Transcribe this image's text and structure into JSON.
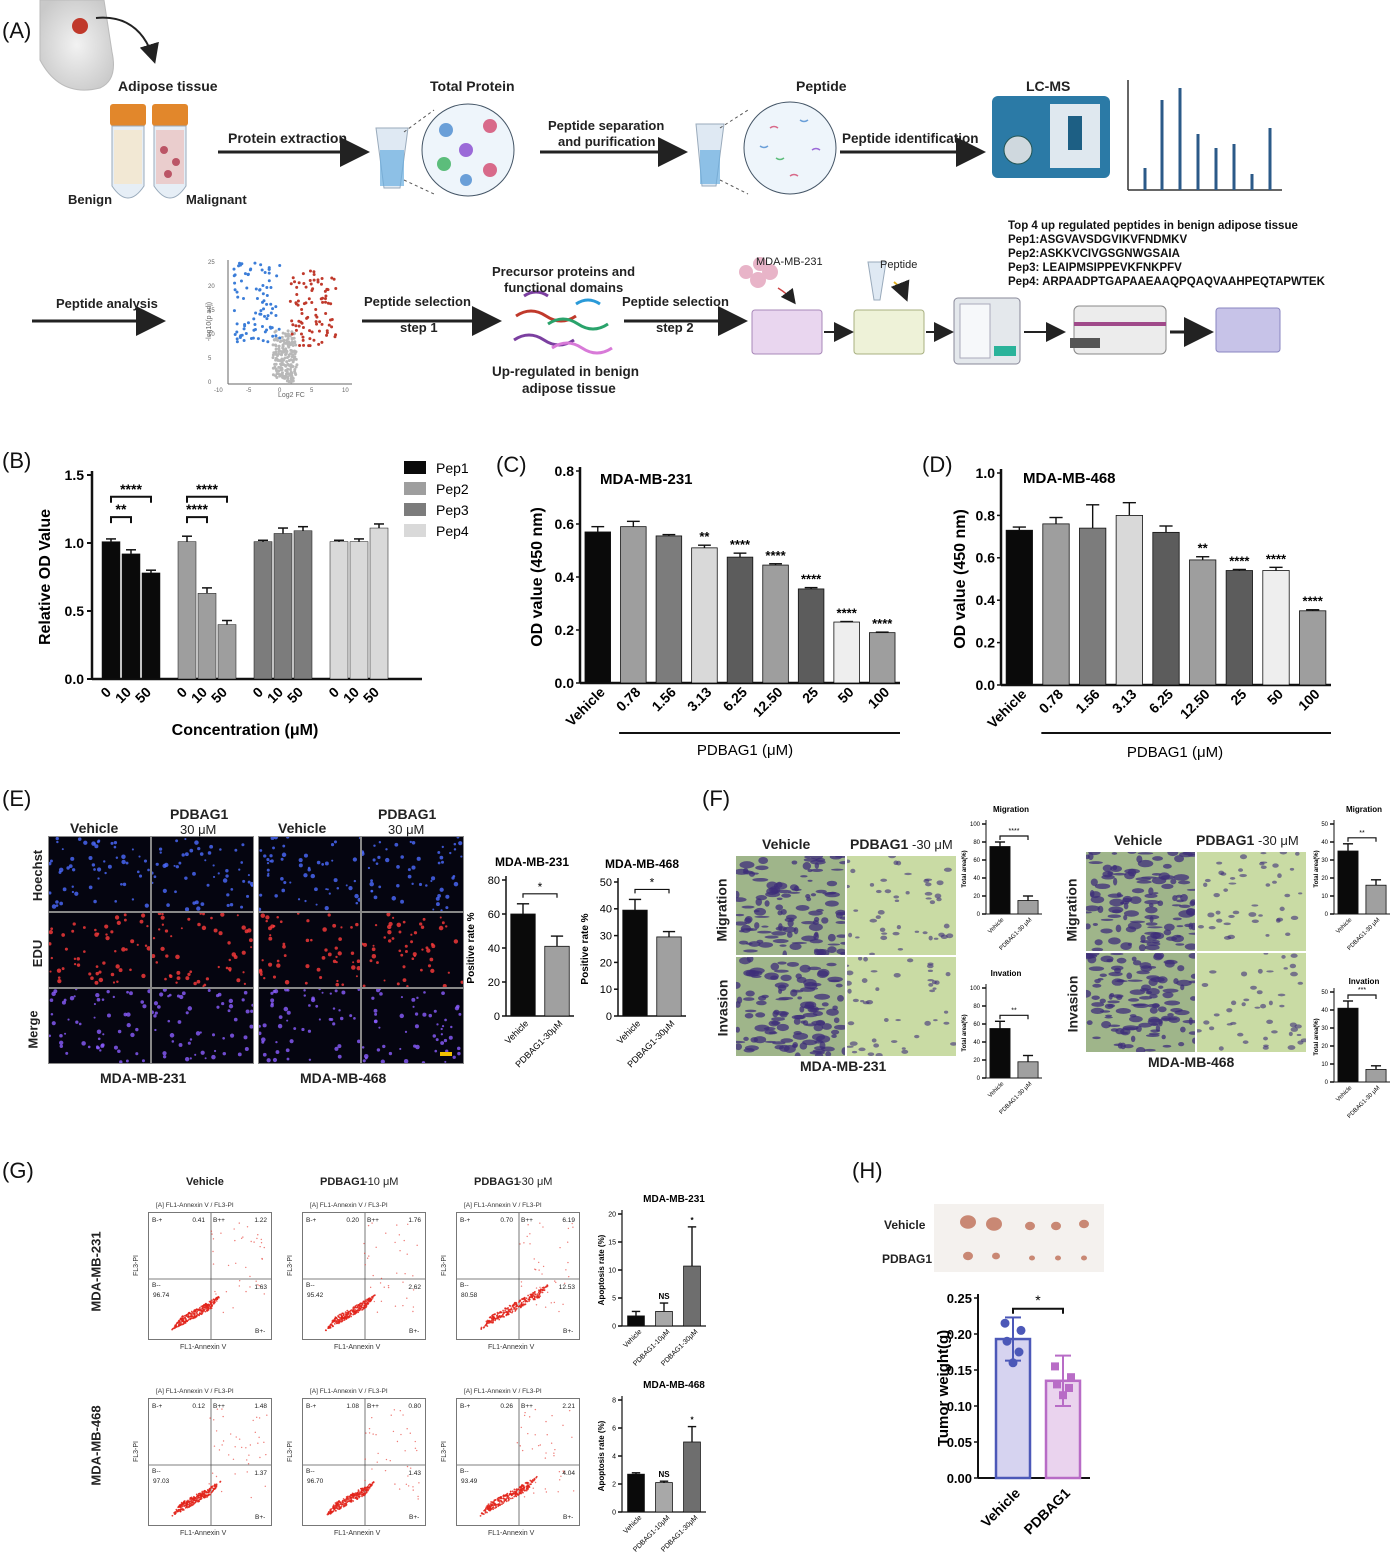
{
  "panels": [
    "(A)",
    "(B)",
    "(C)",
    "(D)",
    "(E)",
    "(F)",
    "(G)",
    "(H)"
  ],
  "workflow": {
    "adipose_tissue": "Adipose tissue",
    "benign": "Benign",
    "malignant": "Malignant",
    "protein_extraction": "Protein extraction",
    "total_protein": "Total Protein",
    "peptide_sep_1": "Peptide separation",
    "peptide_sep_2": "and purification",
    "peptide": "Peptide",
    "peptide_identification": "Peptide identification",
    "lcms": "LC-MS",
    "peptide_analysis": "Peptide analysis",
    "volcano_xlabel": "Log2 FC",
    "volcano_ylabel": "-log10(p adj)",
    "volcano_yticks": [
      "25",
      "20",
      "15",
      "10",
      "5",
      "0"
    ],
    "volcano_xticks": [
      "-10",
      "-5",
      "0",
      "5",
      "10"
    ],
    "peptide_selection": "Peptide selection",
    "step1": "step 1",
    "precursor_1": "Precursor proteins and",
    "precursor_2": "functional domains",
    "upregulated_1": "Up-regulated in benign",
    "upregulated_2": "adipose tissue",
    "step2": "step 2",
    "mda231": "MDA-MB-231",
    "peptide_small": "Peptide",
    "top4_title": "Top 4 up regulated peptides in benign adipose tissue",
    "pep_lines": [
      "Pep1:ASGVAVSDGVIKVFNDMKV",
      "Pep2:ASKKVCIVGSGNWGSAIA",
      "Pep3:  LEAIPMSIPPEVKFNKPFV",
      "Pep4:  ARPAADPTGAPAAEAAQPQAQVAAHPEQTAPWTEK"
    ]
  },
  "chart_data": [
    {
      "id": "B",
      "type": "bar",
      "ylabel": "Relative OD Value",
      "xlabel": "Concentration (μM)",
      "ylim": [
        0,
        1.5
      ],
      "yticks": [
        "0.0",
        "0.5",
        "1.0",
        "1.5"
      ],
      "categories": [
        "0",
        "10",
        "50"
      ],
      "series": [
        {
          "name": "Pep1",
          "values": [
            1.01,
            0.92,
            0.78
          ],
          "err": [
            0.02,
            0.03,
            0.02
          ],
          "color": "#0a0a0a"
        },
        {
          "name": "Pep2",
          "values": [
            1.01,
            0.63,
            0.4
          ],
          "err": [
            0.04,
            0.04,
            0.03
          ],
          "color": "#9e9e9e"
        },
        {
          "name": "Pep3",
          "values": [
            1.01,
            1.07,
            1.09
          ],
          "err": [
            0.01,
            0.04,
            0.03
          ],
          "color": "#7c7c7c"
        },
        {
          "name": "Pep4",
          "values": [
            1.01,
            1.01,
            1.11
          ],
          "err": [
            0.01,
            0.02,
            0.03
          ],
          "color": "#d9d9d9"
        }
      ],
      "significance": [
        "**",
        "****",
        "****",
        "****"
      ],
      "legend": "top-right"
    },
    {
      "id": "C",
      "type": "bar",
      "title": "MDA-MB-231",
      "ylabel": "OD value (450 nm)",
      "xlabel": "PDBAG1 (μM)",
      "ylim": [
        0,
        0.8
      ],
      "yticks": [
        "0.0",
        "0.2",
        "0.4",
        "0.6",
        "0.8"
      ],
      "categories": [
        "Vehicle",
        "0.78",
        "1.56",
        "3.13",
        "6.25",
        "12.50",
        "25",
        "50",
        "100"
      ],
      "values": [
        0.57,
        0.59,
        0.555,
        0.51,
        0.475,
        0.445,
        0.355,
        0.23,
        0.19
      ],
      "err": [
        0.02,
        0.02,
        0.005,
        0.01,
        0.015,
        0.005,
        0.005,
        0.002,
        0.002
      ],
      "colors": [
        "#0a0a0a",
        "#9e9e9e",
        "#7c7c7c",
        "#d9d9d9",
        "#5c5c5c",
        "#9e9e9e",
        "#5c5c5c",
        "#eeeeee",
        "#9e9e9e"
      ],
      "significance": [
        "",
        "",
        "",
        "**",
        "****",
        "****",
        "****",
        "****",
        "****"
      ]
    },
    {
      "id": "D",
      "type": "bar",
      "title": "MDA-MB-468",
      "ylabel": "OD value (450 nm)",
      "xlabel": "PDBAG1 (μM)",
      "ylim": [
        0,
        1.0
      ],
      "yticks": [
        "0.0",
        "0.2",
        "0.4",
        "0.6",
        "0.8",
        "1.0"
      ],
      "categories": [
        "Vehicle",
        "0.78",
        "1.56",
        "3.13",
        "6.25",
        "12.50",
        "25",
        "50",
        "100"
      ],
      "values": [
        0.73,
        0.76,
        0.74,
        0.8,
        0.72,
        0.59,
        0.54,
        0.54,
        0.35
      ],
      "err": [
        0.015,
        0.03,
        0.11,
        0.06,
        0.03,
        0.015,
        0.005,
        0.015,
        0.005
      ],
      "colors": [
        "#0a0a0a",
        "#9e9e9e",
        "#7c7c7c",
        "#d9d9d9",
        "#5c5c5c",
        "#9e9e9e",
        "#5c5c5c",
        "#eeeeee",
        "#9e9e9e"
      ],
      "significance": [
        "",
        "",
        "",
        "",
        "",
        "**",
        "****",
        "****",
        "****"
      ]
    },
    {
      "id": "E1",
      "type": "bar",
      "title": "MDA-MB-231",
      "ylabel": "Positive rate %",
      "ylim": [
        0,
        80
      ],
      "yticks": [
        "0",
        "20",
        "40",
        "60",
        "80"
      ],
      "categories": [
        "Vehicle",
        "PDBAG1-30μM"
      ],
      "values": [
        60,
        41
      ],
      "err": [
        6,
        6
      ],
      "colors": [
        "#0a0a0a",
        "#a0a0a0"
      ],
      "significance": "*"
    },
    {
      "id": "E2",
      "type": "bar",
      "title": "MDA-MB-468",
      "ylabel": "Positive rate %",
      "ylim": [
        0,
        50
      ],
      "yticks": [
        "0",
        "10",
        "20",
        "30",
        "40",
        "50"
      ],
      "categories": [
        "Vehicle",
        "PDBAG1-30μM"
      ],
      "values": [
        39.5,
        29.5
      ],
      "err": [
        4,
        2
      ],
      "colors": [
        "#0a0a0a",
        "#a0a0a0"
      ],
      "significance": "*"
    },
    {
      "id": "F1",
      "type": "bar",
      "title": "Migration",
      "ylabel": "Total area(%)",
      "ylim": [
        0,
        100
      ],
      "yticks": [
        "0",
        "20",
        "40",
        "60",
        "80",
        "100"
      ],
      "categories": [
        "Vehicle",
        "PDBAG1-30 μM"
      ],
      "values": [
        75,
        15
      ],
      "err": [
        5,
        5
      ],
      "colors": [
        "#0a0a0a",
        "#a0a0a0"
      ],
      "significance": "****"
    },
    {
      "id": "F2",
      "type": "bar",
      "title": "Invation",
      "ylabel": "Total area(%)",
      "ylim": [
        0,
        100
      ],
      "yticks": [
        "0",
        "20",
        "40",
        "60",
        "80",
        "100"
      ],
      "categories": [
        "Vehicle",
        "PDBAG1-30 μM"
      ],
      "values": [
        55,
        18
      ],
      "err": [
        8,
        7
      ],
      "colors": [
        "#0a0a0a",
        "#a0a0a0"
      ],
      "significance": "**"
    },
    {
      "id": "F3",
      "type": "bar",
      "title": "Migration",
      "ylabel": "Total area(%)",
      "ylim": [
        0,
        50
      ],
      "yticks": [
        "0",
        "10",
        "20",
        "30",
        "40",
        "50"
      ],
      "categories": [
        "Vehicle",
        "PDBAG1-30 μM"
      ],
      "values": [
        35,
        16
      ],
      "err": [
        4,
        3
      ],
      "colors": [
        "#0a0a0a",
        "#a0a0a0"
      ],
      "significance": "**"
    },
    {
      "id": "F4",
      "type": "bar",
      "title": "Invation",
      "ylabel": "Total area(%)",
      "ylim": [
        0,
        50
      ],
      "yticks": [
        "0",
        "10",
        "20",
        "30",
        "40",
        "50"
      ],
      "categories": [
        "Vehicle",
        "PDBAG1-30 μM"
      ],
      "values": [
        41,
        7
      ],
      "err": [
        4,
        2
      ],
      "colors": [
        "#0a0a0a",
        "#a0a0a0"
      ],
      "significance": "***"
    },
    {
      "id": "G1",
      "type": "bar",
      "title": "MDA-MB-231",
      "ylabel": "Apoptosis rate (%)",
      "ylim": [
        0,
        20
      ],
      "yticks": [
        "0",
        "5",
        "10",
        "15",
        "20"
      ],
      "categories": [
        "Vehicle",
        "PDBAG1-10μM",
        "PDBAG1-30μM"
      ],
      "values": [
        1.8,
        2.6,
        10.7
      ],
      "err": [
        0.8,
        1.5,
        7.0
      ],
      "colors": [
        "#0a0a0a",
        "#a8a8a8",
        "#6e6e6e"
      ],
      "significance": [
        "",
        "NS",
        "*"
      ]
    },
    {
      "id": "G2",
      "type": "bar",
      "title": "MDA-MB-468",
      "ylabel": "Apoptosis rate (%)",
      "ylim": [
        0,
        8
      ],
      "yticks": [
        "0",
        "2",
        "4",
        "6",
        "8"
      ],
      "categories": [
        "Vehicle",
        "PDBAG1-10μM",
        "PDBAG1-30μM"
      ],
      "values": [
        2.7,
        2.1,
        5.0
      ],
      "err": [
        0.1,
        0.1,
        1.1
      ],
      "colors": [
        "#0a0a0a",
        "#a8a8a8",
        "#6e6e6e"
      ],
      "significance": [
        "",
        "NS",
        "*"
      ]
    },
    {
      "id": "H",
      "type": "bar",
      "ylabel": "Tumor weight(g)",
      "ylim": [
        0,
        0.25
      ],
      "yticks": [
        "0.00",
        "0.05",
        "0.10",
        "0.15",
        "0.20",
        "0.25"
      ],
      "categories": [
        "Vehicle",
        "PDBAG1"
      ],
      "values": [
        0.193,
        0.135
      ],
      "err": [
        0.03,
        0.035
      ],
      "points": [
        [
          0.215,
          0.205,
          0.19,
          0.175,
          0.16
        ],
        [
          0.155,
          0.14,
          0.13,
          0.125,
          0.115
        ]
      ],
      "colors": [
        "#d6d3f0",
        "#ead3ee"
      ],
      "edge": [
        "#4c58b8",
        "#b86cc6"
      ],
      "significance": "*"
    }
  ],
  "panelE": {
    "col_vehicle": "Vehicle",
    "col_pdbag1": "PDBAG1",
    "col_dose": "30 μM",
    "row_hoechst": "Hoechst",
    "row_edu": "EDU",
    "row_merge": "Merge",
    "cell_231": "MDA-MB-231",
    "cell_468": "MDA-MB-468"
  },
  "panelF": {
    "vehicle": "Vehicle",
    "pdbag1": "PDBAG1",
    "dose": "-30 μM",
    "migration": "Migration",
    "invasion": "Invasion",
    "cell_231": "MDA-MB-231",
    "cell_468": "MDA-MB-468"
  },
  "panelG": {
    "col_vehicle": "Vehicle",
    "col_10_a": "PDBAG1",
    "col_10_b": "-10 μM",
    "col_30_a": "PDBAG1",
    "col_30_b": "-30 μM",
    "row_231": "MDA-MB-231",
    "row_468": "MDA-MB-468",
    "flow_title": "[A] FL1-Annexin V / FL3-PI",
    "x_axis": "FL1-Annexin V",
    "y_axis": "FL3-PI",
    "q_ul": "B-+",
    "q_ur": "B++",
    "q_ll": "B--",
    "q_lr": "B+-",
    "plots": [
      {
        "ul": "0.41",
        "ur": "1.22",
        "ll": "96.74",
        "lr": "1.63"
      },
      {
        "ul": "0.20",
        "ur": "1.76",
        "ll": "95.42",
        "lr": "2.62"
      },
      {
        "ul": "0.70",
        "ur": "6.19",
        "ll": "80.58",
        "lr": "12.53"
      },
      {
        "ul": "0.12",
        "ur": "1.48",
        "ll": "97.03",
        "lr": "1.37"
      },
      {
        "ul": "1.08",
        "ur": "0.80",
        "ll": "96.70",
        "lr": "1.43"
      },
      {
        "ul": "0.26",
        "ur": "2.21",
        "ll": "93.49",
        "lr": "4.04"
      }
    ]
  },
  "panelH": {
    "vehicle": "Vehicle",
    "pdbag1": "PDBAG1"
  }
}
